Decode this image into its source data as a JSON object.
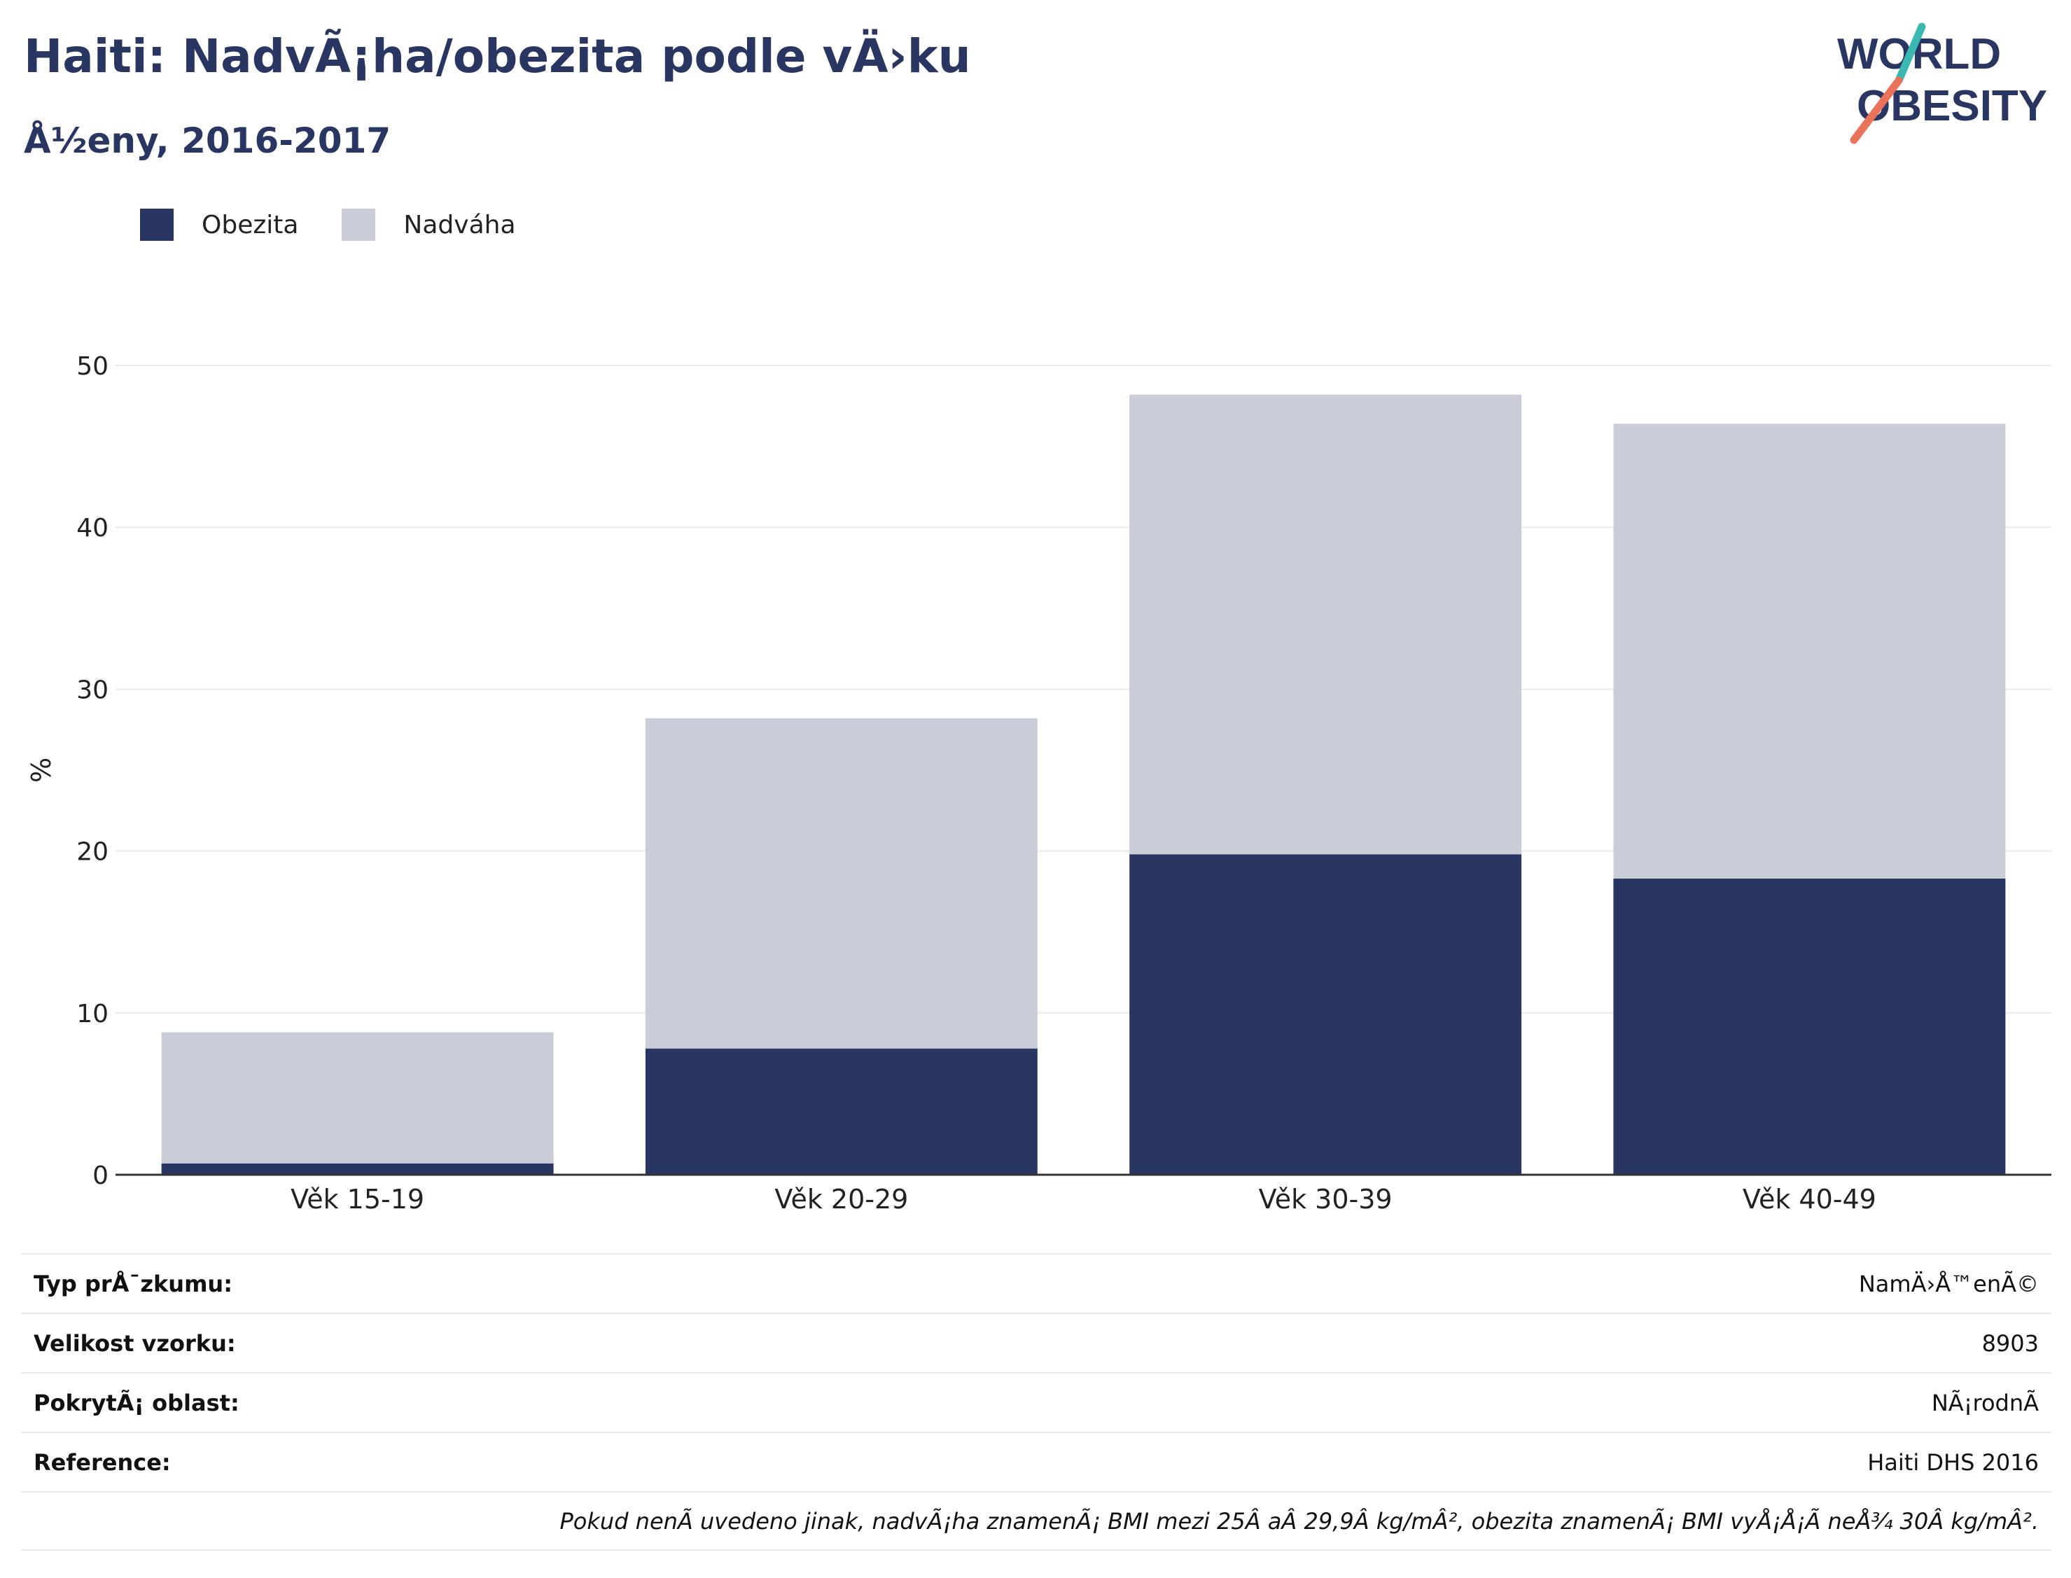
{
  "header": {
    "title": "Haiti: NadvÃ¡ha/obezita podle vÄ›ku",
    "subtitle": "Å½eny, 2016-2017"
  },
  "logo": {
    "line1": "WORLD",
    "line2": "OBESITY",
    "text_color": "#2a3662",
    "slash_colors": [
      "#3cb8b2",
      "#e8735a"
    ]
  },
  "legend": [
    {
      "label": "Obezita",
      "color": "#2a3662"
    },
    {
      "label": "Nadváha",
      "color": "#cacdd8"
    }
  ],
  "chart_data": {
    "type": "bar",
    "stacked": true,
    "categories": [
      "Věk 15-19",
      "Věk 20-29",
      "Věk 30-39",
      "Věk 40-49"
    ],
    "series": [
      {
        "name": "Obezita",
        "color": "#2a3662",
        "values": [
          0.7,
          7.8,
          19.8,
          18.3
        ]
      },
      {
        "name": "Nadváha",
        "color": "#cacdd8",
        "values": [
          8.1,
          20.4,
          28.4,
          28.1
        ]
      }
    ],
    "ylabel": "%",
    "ylim": [
      0,
      50
    ],
    "yticks": [
      0,
      10,
      20,
      30,
      40,
      50
    ],
    "grid": true,
    "legend_position": "top-left"
  },
  "info": [
    {
      "key": "Typ prÅ¯zkumu:",
      "value": "NamÄ›Å™enÃ©"
    },
    {
      "key": "Velikost vzorku:",
      "value": "8903"
    },
    {
      "key": "PokrytÃ¡ oblast:",
      "value": "NÃ¡rodnÃ"
    },
    {
      "key": "Reference:",
      "value": "Haiti DHS 2016"
    }
  ],
  "footnote": "Pokud nenÃ uvedeno jinak, nadvÃ¡ha znamenÃ¡ BMI mezi 25Â aÂ 29,9Â kg/mÂ², obezita znamenÃ¡ BMI vyÅ¡Å¡Ã neÅ¾ 30Â kg/mÂ²."
}
